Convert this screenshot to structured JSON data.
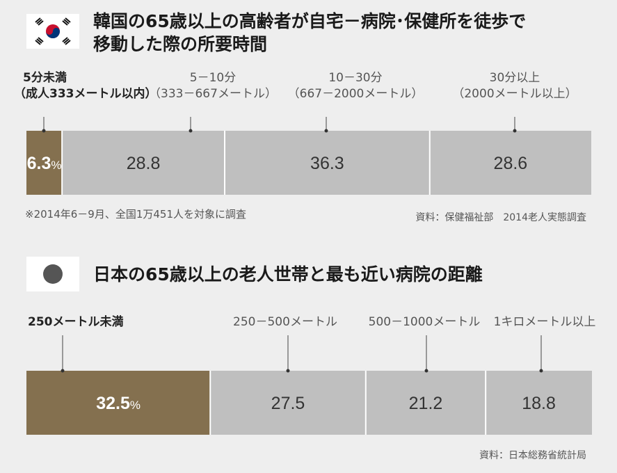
{
  "korea": {
    "title": "韓国の65歳以上の高齢者が自宅－病院･保健所を徒歩で\n移動した際の所要時間",
    "categories": [
      {
        "label": "5分未満",
        "sub": "（成人333メートル以内）"
      },
      {
        "label": "5－10分",
        "sub": "（333－667メートル）"
      },
      {
        "label": "10－30分",
        "sub": "（667－2000メートル）"
      },
      {
        "label": "30分以上",
        "sub": "（2000メートル以上）"
      }
    ],
    "note": "※2014年6－9月、全国1万451人を対象に調査",
    "source": "資料：保健福祉部　2014老人実態調査"
  },
  "japan": {
    "title": "日本の65歳以上の老人世帯と最も近い病院の距離",
    "categories": [
      {
        "label": "250メートル未満"
      },
      {
        "label": "250－500メートル"
      },
      {
        "label": "500－1000メートル"
      },
      {
        "label": "1キロメートル以上"
      }
    ],
    "source": "資料：日本総務省統計局"
  },
  "colors": {
    "highlight": "#84704f",
    "segment": "#bfbfbf",
    "divider": "#ffffff",
    "text_light": "#ffffff",
    "text_dark": "#333333"
  },
  "chart_data": [
    {
      "type": "bar",
      "stacked": true,
      "orientation": "horizontal",
      "title": "韓国の65歳以上の高齢者が自宅－病院･保健所を徒歩で移動した際の所要時間",
      "categories": [
        "5分未満（成人333メートル以内）",
        "5－10分（333－667メートル）",
        "10－30分（667－2000メートル）",
        "30分以上（2000メートル以上）"
      ],
      "values": [
        6.3,
        28.8,
        36.3,
        28.6
      ],
      "value_labels": [
        "6.3",
        "28.8",
        "36.3",
        "28.6"
      ],
      "unit": "%",
      "highlight_index": 0
    },
    {
      "type": "bar",
      "stacked": true,
      "orientation": "horizontal",
      "title": "日本の65歳以上の老人世帯と最も近い病院の距離",
      "categories": [
        "250メートル未満",
        "250－500メートル",
        "500－1000メートル",
        "1キロメートル以上"
      ],
      "values": [
        32.5,
        27.5,
        21.2,
        18.8
      ],
      "value_labels": [
        "32.5",
        "27.5",
        "21.2",
        "18.8"
      ],
      "unit": "%",
      "highlight_index": 0
    }
  ]
}
